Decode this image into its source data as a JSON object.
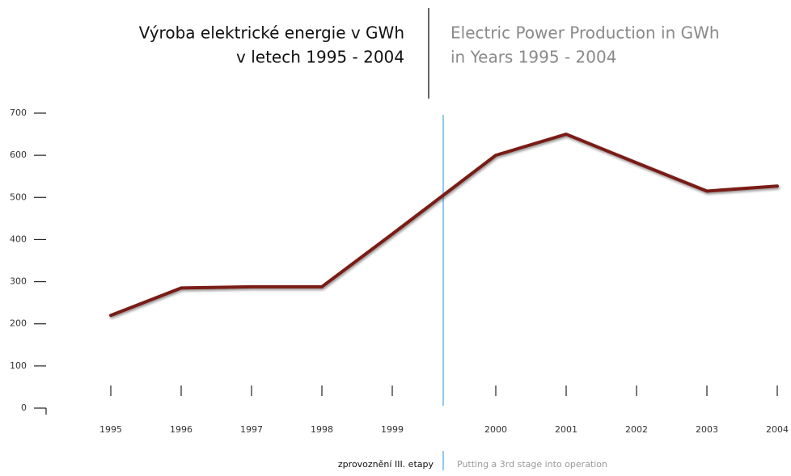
{
  "chart_data": {
    "type": "line",
    "title": [
      "Výroba elektrické energie v GWh",
      "v letech 1995 - 2004"
    ],
    "title_en": [
      "Electric Power Production in GWh",
      "in Years 1995 - 2004"
    ],
    "annotation": {
      "text": "zprovoznění III. etapy",
      "text_en": "Putting a 3rd stage into operation"
    },
    "categories": [
      "1995",
      "1996",
      "1997",
      "1998",
      "1999",
      "2000",
      "2001",
      "2002",
      "2003",
      "2004"
    ],
    "values": [
      220,
      285,
      288,
      288,
      413,
      600,
      650,
      582,
      515,
      527
    ],
    "color": "#7a1a12",
    "ylim": [
      0,
      700
    ],
    "yticks": [
      0,
      100,
      200,
      300,
      400,
      500,
      600,
      700
    ]
  }
}
